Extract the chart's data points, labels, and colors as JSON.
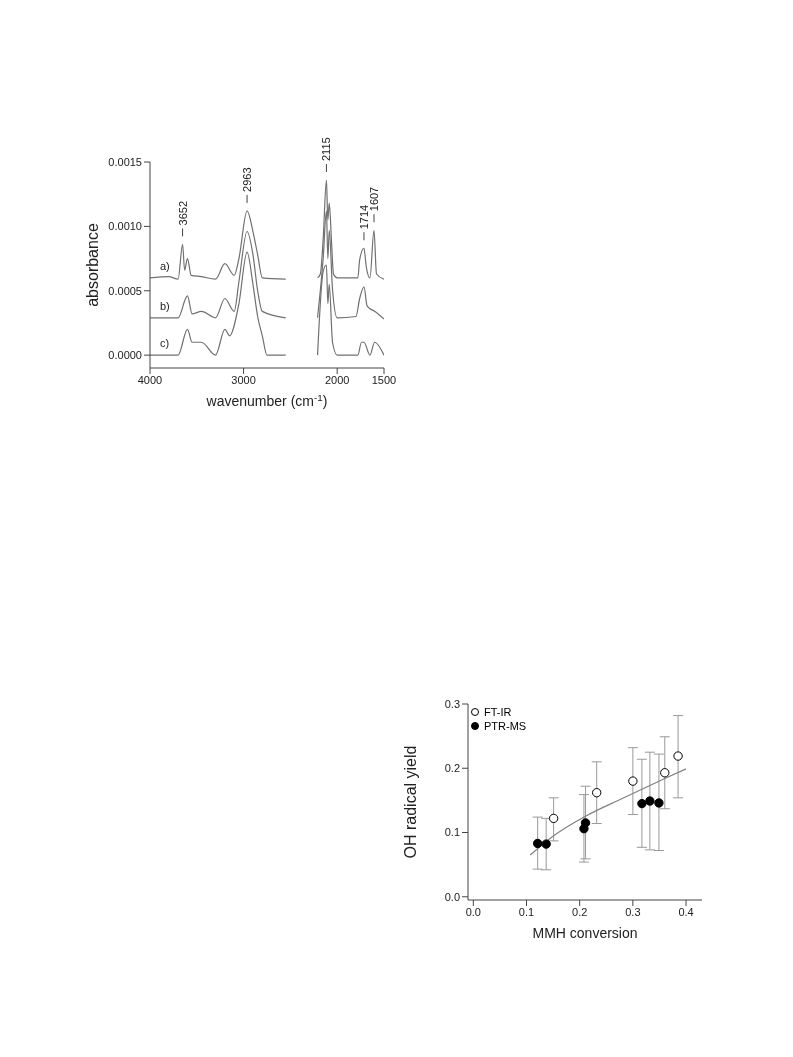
{
  "chart_data": [
    {
      "type": "line",
      "xlabel": "wavenumber (cm$^{-1}$)",
      "ylabel": "absorbance",
      "xlim": [
        4000,
        1500
      ],
      "ylim": [
        -0.0001,
        0.0015
      ],
      "xticks": [
        4000,
        3000,
        2000,
        1500
      ],
      "yticks": [
        {
          "value": 0,
          "label": "0.0000"
        },
        {
          "value": 0.0005,
          "label": "0.0005"
        },
        {
          "value": 0.001,
          "label": "0.0010"
        },
        {
          "value": 0.0015,
          "label": "0.0015"
        }
      ],
      "annotations": [
        {
          "text": "3652",
          "x": 3652,
          "y": 0.00086
        },
        {
          "text": "2963",
          "x": 2963,
          "y": 0.00112
        },
        {
          "text": "2115",
          "x": 2115,
          "y": 0.00136
        },
        {
          "text": "1714",
          "x": 1714,
          "y": 0.00083
        },
        {
          "text": "1607",
          "x": 1607,
          "y": 0.00097
        }
      ],
      "series": [
        {
          "name": "a)",
          "color": "#707070",
          "x": [
            4000,
            3800,
            3700,
            3652,
            3630,
            3600,
            3560,
            3450,
            3300,
            3200,
            3100,
            3050,
            2963,
            2900,
            2850,
            2800,
            2550,
            2400,
            2210,
            2180,
            2150,
            2115,
            2100,
            2085,
            2060,
            2040,
            2000,
            1900,
            1780,
            1760,
            1714,
            1690,
            1650,
            1607,
            1580,
            1500
          ],
          "values": [
            0.0006,
            0.00061,
            0.00059,
            0.00086,
            0.00066,
            0.00075,
            0.00062,
            0.00061,
            0.00059,
            0.00071,
            0.00062,
            0.00075,
            0.00112,
            0.00096,
            0.00078,
            0.0006,
            0.00059,
            null,
            0.0006,
            0.00063,
            0.0009,
            0.00136,
            0.00105,
            0.00118,
            0.00087,
            0.00063,
            0.0006,
            0.0006,
            0.0006,
            0.00074,
            0.00083,
            0.00069,
            0.0006,
            0.00097,
            0.00063,
            0.00059
          ]
        },
        {
          "name": "b)",
          "color": "#707070",
          "x": [
            4000,
            3700,
            3600,
            3550,
            3450,
            3300,
            3200,
            3100,
            3050,
            2963,
            2900,
            2850,
            2800,
            2550,
            2400,
            2210,
            2150,
            2115,
            2100,
            2085,
            2050,
            2000,
            1800,
            1760,
            1714,
            1680,
            1600,
            1500
          ],
          "values": [
            0.00029,
            0.00029,
            0.00046,
            0.00032,
            0.00034,
            0.00029,
            0.00044,
            0.00034,
            0.00057,
            0.00096,
            0.00078,
            0.0005,
            0.00034,
            0.00029,
            null,
            0.00029,
            0.00075,
            0.00112,
            0.00075,
            0.00097,
            0.00051,
            0.00029,
            0.0003,
            0.00044,
            0.00053,
            0.00038,
            0.00034,
            0.00028
          ]
        },
        {
          "name": "c)",
          "color": "#707070",
          "x": [
            4000,
            3700,
            3600,
            3550,
            3450,
            3300,
            3200,
            3150,
            3050,
            2963,
            2900,
            2850,
            2800,
            2750,
            2550,
            2400,
            2210,
            2150,
            2115,
            2100,
            2085,
            2050,
            2000,
            1780,
            1740,
            1714,
            1650,
            1600,
            1500
          ],
          "values": [
            0,
            0,
            0.0002,
            0.0001,
            0.0001,
            0,
            0.0002,
            0.00015,
            0.0004,
            0.0008,
            0.00055,
            0.0003,
            0.00015,
            0,
            0,
            null,
            0,
            0.00065,
            0.0007,
            0.0004,
            0.00055,
            0.0001,
            0,
            0,
            0.0001,
            0.0001,
            0,
            0.0001,
            0
          ]
        }
      ]
    },
    {
      "type": "scatter",
      "xlabel": "MMH conversion",
      "ylabel": "OH radical yield",
      "xlim": [
        -0.01,
        0.43
      ],
      "ylim": [
        -0.005,
        0.3
      ],
      "xticks": [
        {
          "value": 0,
          "label": "0.0"
        },
        0.1,
        0.2,
        0.3,
        0.4
      ],
      "yticks": [
        {
          "value": 0,
          "label": "0.0"
        },
        0.1,
        0.2,
        0.3
      ],
      "legend": "top left",
      "marker": "circle",
      "series": [
        {
          "name": "FT-IR",
          "color": "#ffffff",
          "x": [
            0.151,
            0.232,
            0.3,
            0.36,
            0.385
          ],
          "values": [
            0.122,
            0.162,
            0.18,
            0.193,
            0.219
          ],
          "errors": [
            [
              0.087,
              0.154
            ],
            [
              0.114,
              0.21
            ],
            [
              0.128,
              0.232
            ],
            [
              0.137,
              0.249
            ],
            [
              0.154,
              0.282
            ]
          ]
        },
        {
          "name": "PTR-MS",
          "color": "#000000",
          "x": [
            0.121,
            0.137,
            0.208,
            0.211,
            0.317,
            0.332,
            0.349
          ],
          "values": [
            0.083,
            0.082,
            0.106,
            0.115,
            0.145,
            0.149,
            0.146
          ],
          "errors": [
            [
              0.043,
              0.124
            ],
            [
              0.042,
              0.122
            ],
            [
              0.054,
              0.159
            ],
            [
              0.059,
              0.172
            ],
            [
              0.077,
              0.214
            ],
            [
              0.073,
              0.225
            ],
            [
              0.072,
              0.222
            ]
          ]
        },
        {
          "type": "line",
          "color": "#808080",
          "marker": "none",
          "x": [
            0.107,
            0.151,
            0.21,
            0.28,
            0.36,
            0.4
          ],
          "values": [
            0.065,
            0.095,
            0.125,
            0.153,
            0.184,
            0.199
          ]
        }
      ]
    }
  ]
}
